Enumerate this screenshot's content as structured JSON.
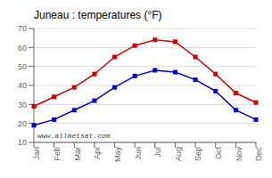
{
  "chart_data": {
    "type": "line",
    "title": "Juneau : temperatures (°F)",
    "categories": [
      "Jan",
      "Feb",
      "Mar",
      "Apr",
      "May",
      "Jun",
      "Jul",
      "Aug",
      "Sep",
      "Oct",
      "Nov",
      "Dec"
    ],
    "series": [
      {
        "color": "#cc0000",
        "marker": "square",
        "values": [
          29,
          34,
          39,
          46,
          55,
          61,
          64,
          63,
          55,
          46,
          36,
          31
        ]
      },
      {
        "color": "#0000cc",
        "marker": "square",
        "values": [
          19,
          22,
          27,
          32,
          39,
          45,
          48,
          47,
          43,
          37,
          27,
          22
        ]
      }
    ],
    "ylim": [
      10,
      70
    ],
    "yticks": [
      10,
      20,
      30,
      40,
      50,
      60,
      70
    ],
    "grid": true,
    "annotations": [
      "www.allmetsat.com"
    ]
  }
}
